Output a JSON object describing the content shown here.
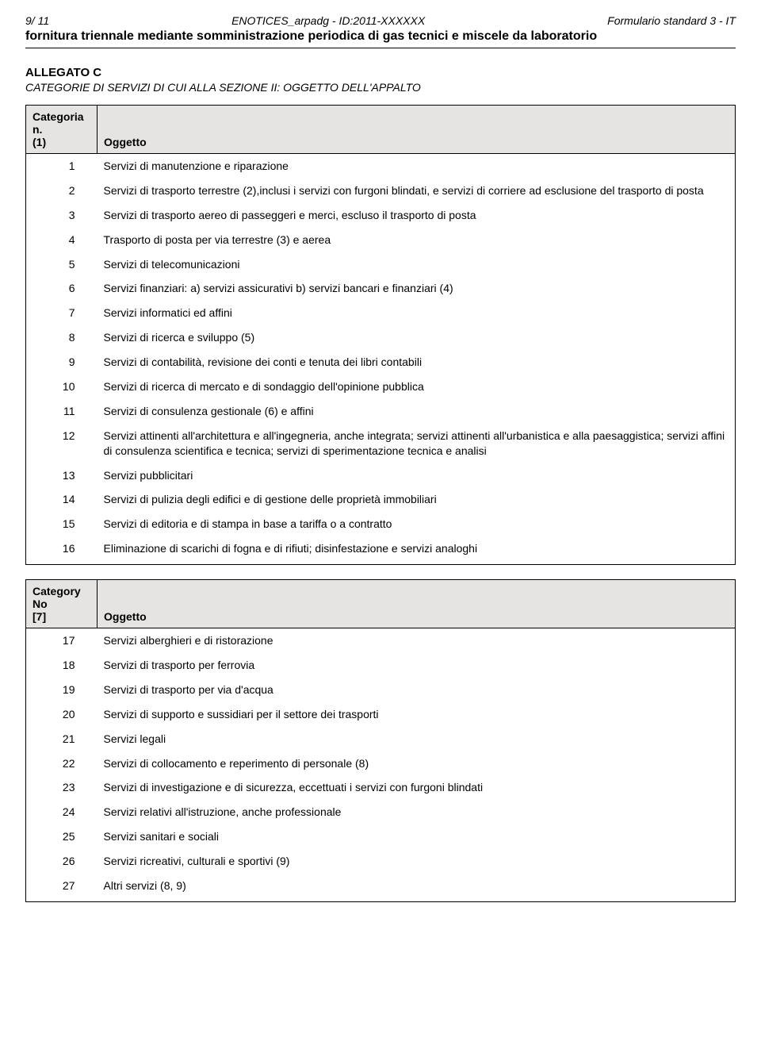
{
  "header": {
    "page_ref": "9/ 11",
    "center": "ENOTICES_arpadg - ID:2011-XXXXXX",
    "right": "Formulario standard 3 - IT"
  },
  "title": "fornitura triennale mediante somministrazione periodica di gas tecnici e miscele da laboratorio",
  "allegato": {
    "label": "ALLEGATO C",
    "subtitle": "CATEGORIE DI SERVIZI DI CUI ALLA SEZIONE II: OGGETTO DELL'APPALTO"
  },
  "table1": {
    "head_line1": "Categoria n.",
    "head_line2": "(1)",
    "head_col2": "Oggetto",
    "rows": [
      {
        "n": "1",
        "t": "Servizi di manutenzione e riparazione"
      },
      {
        "n": "2",
        "t": "Servizi di trasporto terrestre (2),inclusi i servizi con furgoni blindati, e servizi di corriere ad esclusione del trasporto di posta"
      },
      {
        "n": "3",
        "t": "Servizi di trasporto aereo di passeggeri e merci, escluso il trasporto di posta"
      },
      {
        "n": "4",
        "t": "Trasporto di posta per via terrestre (3) e aerea"
      },
      {
        "n": "5",
        "t": "Servizi di telecomunicazioni"
      },
      {
        "n": "6",
        "t": "Servizi finanziari: a) servizi assicurativi b) servizi bancari e finanziari (4)"
      },
      {
        "n": "7",
        "t": "Servizi informatici ed affini"
      },
      {
        "n": "8",
        "t": "Servizi di ricerca e sviluppo (5)"
      },
      {
        "n": "9",
        "t": "Servizi di contabilità, revisione dei conti e tenuta dei libri contabili"
      },
      {
        "n": "10",
        "t": "Servizi di ricerca di mercato e di sondaggio dell'opinione pubblica"
      },
      {
        "n": "11",
        "t": "Servizi di consulenza gestionale (6) e affini"
      },
      {
        "n": "12",
        "t": "Servizi attinenti all'architettura e all'ingegneria, anche integrata; servizi attinenti all'urbanistica e alla paesaggistica; servizi affini di consulenza scientifica e tecnica; servizi di sperimentazione tecnica e analisi"
      },
      {
        "n": "13",
        "t": "Servizi pubblicitari"
      },
      {
        "n": "14",
        "t": "Servizi di pulizia degli edifici e di gestione delle proprietà immobiliari"
      },
      {
        "n": "15",
        "t": "Servizi di editoria e di stampa in base a tariffa o a contratto"
      },
      {
        "n": "16",
        "t": "Eliminazione di scarichi di fogna e di rifiuti; disinfestazione e servizi analoghi"
      }
    ]
  },
  "table2": {
    "head_line1": "Category No",
    "head_line2": "[7]",
    "head_col2": "Oggetto",
    "rows": [
      {
        "n": "17",
        "t": "Servizi alberghieri e di ristorazione"
      },
      {
        "n": "18",
        "t": "Servizi di trasporto per ferrovia"
      },
      {
        "n": "19",
        "t": "Servizi di trasporto per via d'acqua"
      },
      {
        "n": "20",
        "t": "Servizi di supporto e sussidiari per il settore dei trasporti"
      },
      {
        "n": "21",
        "t": "Servizi legali"
      },
      {
        "n": "22",
        "t": "Servizi di collocamento e reperimento di personale (8)"
      },
      {
        "n": "23",
        "t": "Servizi di investigazione e di sicurezza, eccettuati i servizi con furgoni blindati"
      },
      {
        "n": "24",
        "t": "Servizi relativi all'istruzione, anche professionale"
      },
      {
        "n": "25",
        "t": "Servizi sanitari e sociali"
      },
      {
        "n": "26",
        "t": "Servizi ricreativi, culturali e sportivi (9)"
      },
      {
        "n": "27",
        "t": "Altri servizi (8, 9)"
      }
    ]
  }
}
